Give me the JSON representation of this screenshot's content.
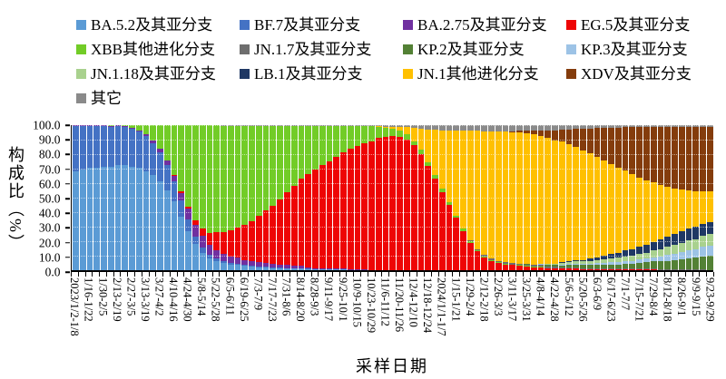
{
  "figure": {
    "y_axis_title": "构成比（%）",
    "x_axis_title": "采样日期"
  },
  "chart_data": {
    "type": "bar",
    "subtype": "stacked-100-percent-columns",
    "title": "",
    "xlabel": "采样日期",
    "ylabel": "构成比（%）",
    "ylim": [
      0,
      100
    ],
    "grid": true,
    "legend_position": "top",
    "n_bars": 91,
    "bars_per_label": 2,
    "y_ticks": [
      "100.0",
      "90.0",
      "80.0",
      "70.0",
      "60.0",
      "50.0",
      "40.0",
      "30.0",
      "20.0",
      "10.0",
      "0.0"
    ],
    "x_tick_labels": [
      "2023/1/2-1/8",
      "1/16-1/22",
      "1/30-2/5",
      "2/13-2/19",
      "2/27-3/5",
      "3/13-3/19",
      "3/27-4/2",
      "4/10-4/16",
      "4/24-4/30",
      "5/8-5/14",
      "5/22-5/28",
      "6/5-6/11",
      "6/19-6/25",
      "7/3-7/9",
      "7/17-7/23",
      "7/31-8/6",
      "8/14-8/20",
      "8/28-9/3",
      "9/11-9/17",
      "9/25-10/1",
      "10/9-10/15",
      "10/23-10/29",
      "11/6-11/12",
      "11/20-11/26",
      "12/4-12/10",
      "12/18-12/24",
      "2024/1/1-1/7",
      "1/15-1/21",
      "1/29-2/4",
      "2/12-2/18",
      "2/26-3/3",
      "3/11-3/17",
      "3/25-3/31",
      "4/8-4/14",
      "4/22-4/28",
      "5/6-5/12",
      "5/20-5/26",
      "6/3-6/9",
      "6/17-6/23",
      "7/1-7/7",
      "7/15-7/21",
      "7/29-8/4",
      "8/12-8/18",
      "8/26-9/1",
      "9/9-9/15",
      "9/23-9/29"
    ],
    "series": [
      {
        "name": "BA.5.2及其亚分支",
        "color": "#5B9BD5",
        "values": [
          68,
          69,
          70,
          70,
          71,
          71,
          72,
          72,
          71,
          70,
          68,
          65,
          61,
          55,
          47,
          37,
          27,
          18,
          12,
          8,
          6,
          5,
          4,
          3.5,
          3,
          2.5,
          2,
          2,
          1.5,
          1.5,
          1,
          1,
          1,
          0.5,
          0.5,
          0.5,
          0.5,
          0.5,
          0.5,
          0,
          0,
          0,
          0,
          0,
          0,
          0,
          0,
          0,
          0,
          0,
          0,
          0,
          0,
          0,
          0,
          0,
          0,
          0,
          0,
          0,
          0,
          0,
          0,
          0,
          0,
          0,
          0,
          0,
          0,
          0,
          0,
          0,
          0,
          0,
          0,
          0,
          0,
          0,
          0,
          0,
          0,
          0,
          0,
          0,
          0,
          0,
          0,
          0,
          0,
          0,
          0
        ]
      },
      {
        "name": "BF.7及其亚分支",
        "color": "#4472C4",
        "values": [
          31,
          30,
          29,
          29,
          28,
          27.5,
          27,
          26.5,
          26,
          25,
          24,
          22,
          20,
          17,
          14,
          11,
          8,
          5,
          3.5,
          2.5,
          2,
          1.5,
          1,
          1,
          0.5,
          0.5,
          0.5,
          0.5,
          0.5,
          0.5,
          0.5,
          0.5,
          0.5,
          0.5,
          0,
          0,
          0,
          0,
          0,
          0,
          0,
          0,
          0,
          0,
          0,
          0,
          0,
          0,
          0,
          0,
          0,
          0,
          0,
          0,
          0,
          0,
          0,
          0,
          0,
          0,
          0,
          0,
          0,
          0,
          0,
          0,
          0,
          0,
          0,
          0,
          0,
          0,
          0,
          0,
          0,
          0,
          0,
          0,
          0,
          0,
          0,
          0,
          0,
          0,
          0,
          0,
          0,
          0,
          0,
          0,
          0
        ]
      },
      {
        "name": "BA.2.75及其亚分支",
        "color": "#7030A0",
        "values": [
          0.5,
          0.5,
          0.5,
          0.5,
          0.5,
          0.5,
          0.5,
          0.5,
          0.5,
          1,
          1.5,
          2,
          2.5,
          3,
          4,
          5,
          7,
          8,
          8,
          7,
          6,
          5,
          4.5,
          4,
          3.5,
          3,
          3,
          2.5,
          2.5,
          2,
          2,
          1.5,
          1.5,
          1,
          1,
          1,
          0.5,
          0.5,
          0.5,
          0.5,
          0.5,
          0.5,
          0,
          0,
          0,
          0,
          0,
          0,
          0,
          0,
          0,
          0,
          0,
          0,
          0,
          0,
          0,
          0,
          0,
          0,
          0,
          0,
          0,
          0,
          0,
          0,
          0,
          0,
          0,
          0,
          0,
          0,
          0,
          0,
          0,
          0,
          0,
          0,
          0,
          0,
          0,
          0,
          0,
          0,
          0,
          0,
          0,
          0,
          0,
          0,
          0
        ]
      },
      {
        "name": "EG.5及其亚分支",
        "color": "#EE0505",
        "values": [
          0,
          0,
          0,
          0,
          0,
          0,
          0,
          0,
          0,
          0,
          0,
          0,
          0,
          0,
          0.5,
          1,
          1.5,
          3,
          5,
          8,
          12,
          15,
          18,
          21,
          24,
          28,
          32,
          36,
          40,
          45,
          50,
          55,
          60,
          64,
          68,
          71,
          74,
          77,
          80,
          83,
          85,
          87,
          89,
          91,
          92,
          92.5,
          92,
          90,
          86,
          80,
          72,
          63,
          54,
          45,
          36,
          27,
          19,
          13,
          9,
          6.5,
          5,
          4,
          3.5,
          3,
          2.5,
          2,
          2,
          1.5,
          1.5,
          1,
          1,
          1,
          0.5,
          0.5,
          0.5,
          0.5,
          0.5,
          0.5,
          0.5,
          0.5,
          0.5,
          0.5,
          0.5,
          0,
          0,
          0,
          0,
          0,
          0,
          0,
          0
        ]
      },
      {
        "name": "XBB其他进化分支",
        "color": "#72CC27",
        "values": [
          0,
          0,
          0,
          0,
          0,
          0.5,
          0,
          0.5,
          2,
          3.5,
          6,
          10.5,
          16,
          24.5,
          34,
          45.5,
          56,
          65.5,
          71,
          74,
          73.5,
          73,
          72,
          70,
          68.5,
          65.5,
          62,
          58.5,
          55,
          50.5,
          46,
          41.5,
          36.5,
          33.5,
          30,
          27,
          24.5,
          21.5,
          18.5,
          16,
          14,
          12,
          10.5,
          8,
          6,
          5,
          4,
          3.5,
          3,
          3,
          2.5,
          2.5,
          2,
          2,
          1.5,
          1.5,
          1,
          1,
          0.5,
          0.5,
          0.5,
          0.5,
          0.5,
          0.5,
          0.5,
          0.5,
          0.5,
          0,
          0,
          0,
          0,
          0,
          0,
          0,
          0,
          0,
          0,
          0,
          0,
          0,
          0,
          0,
          0,
          0,
          0,
          0,
          0,
          0,
          0,
          0,
          0
        ]
      },
      {
        "name": "JN.1.7及其亚分支",
        "color": "#6E6E6E",
        "values": [
          0,
          0,
          0,
          0,
          0,
          0,
          0,
          0,
          0,
          0,
          0,
          0,
          0,
          0,
          0,
          0,
          0,
          0,
          0,
          0,
          0,
          0,
          0,
          0,
          0,
          0,
          0,
          0,
          0,
          0,
          0,
          0,
          0,
          0,
          0,
          0,
          0,
          0,
          0,
          0,
          0,
          0,
          0,
          0,
          0,
          0,
          0,
          0,
          0,
          0,
          0,
          0,
          0,
          0,
          0,
          0,
          0.5,
          0.5,
          1,
          1,
          1,
          1,
          1,
          1,
          1,
          1,
          1,
          1,
          1,
          1,
          1,
          1,
          1,
          1,
          1,
          0.5,
          0.5,
          0.5,
          0.5,
          0.5,
          0.5,
          0.5,
          0.5,
          0.5,
          0.5,
          0.5,
          0.5,
          0.5,
          0.5,
          0.5,
          0
        ]
      },
      {
        "name": "KP.2及其亚分支",
        "color": "#538135",
        "values": [
          0,
          0,
          0,
          0,
          0,
          0,
          0,
          0,
          0,
          0,
          0,
          0,
          0,
          0,
          0,
          0,
          0,
          0,
          0,
          0,
          0,
          0,
          0,
          0,
          0,
          0,
          0,
          0,
          0,
          0,
          0,
          0,
          0,
          0,
          0,
          0,
          0,
          0,
          0,
          0,
          0,
          0,
          0,
          0,
          0,
          0,
          0,
          0,
          0,
          0,
          0,
          0,
          0,
          0,
          0,
          0,
          0,
          0,
          0,
          0,
          0,
          0,
          0,
          0,
          0.5,
          0.5,
          0.5,
          1,
          1,
          1,
          1.5,
          1.5,
          2,
          2,
          2.5,
          2.5,
          3,
          3,
          3.5,
          3.5,
          4,
          4.5,
          5,
          5.5,
          6,
          6.5,
          7,
          7.5,
          8,
          9,
          10
        ]
      },
      {
        "name": "KP.3及其亚分支",
        "color": "#9DC3E6",
        "values": [
          0,
          0,
          0,
          0,
          0,
          0,
          0,
          0,
          0,
          0,
          0,
          0,
          0,
          0,
          0,
          0,
          0,
          0,
          0,
          0,
          0,
          0,
          0,
          0,
          0,
          0,
          0,
          0,
          0,
          0,
          0,
          0,
          0,
          0,
          0,
          0,
          0,
          0,
          0,
          0,
          0,
          0,
          0,
          0,
          0,
          0,
          0,
          0,
          0,
          0,
          0,
          0,
          0,
          0,
          0,
          0,
          0,
          0,
          0,
          0,
          0,
          0,
          0,
          0,
          0,
          0,
          0.5,
          0.5,
          0.5,
          1,
          1,
          1,
          1,
          1,
          1,
          1.5,
          1.5,
          1.5,
          2,
          2,
          2.5,
          2.5,
          3,
          3.5,
          4,
          4.5,
          5,
          5.5,
          6,
          6.5,
          7
        ]
      },
      {
        "name": "JN.1.18及其亚分支",
        "color": "#A9D18E",
        "values": [
          0,
          0,
          0,
          0,
          0,
          0,
          0,
          0,
          0,
          0,
          0,
          0,
          0,
          0,
          0,
          0,
          0,
          0,
          0,
          0,
          0,
          0,
          0,
          0,
          0,
          0,
          0,
          0,
          0,
          0,
          0,
          0,
          0,
          0,
          0,
          0,
          0,
          0,
          0,
          0,
          0,
          0,
          0,
          0,
          0,
          0,
          0,
          0,
          0,
          0,
          0,
          0,
          0,
          0,
          0,
          0,
          0,
          0,
          0,
          0,
          0,
          0,
          0,
          0,
          0,
          0,
          0,
          0.5,
          0.5,
          1,
          1,
          1.5,
          1.5,
          2,
          2,
          2.5,
          2.5,
          3,
          3,
          3.5,
          3.5,
          4,
          4.5,
          5,
          5.5,
          6,
          6.5,
          7,
          7,
          7.5,
          8
        ]
      },
      {
        "name": "LB.1及其亚分支",
        "color": "#1F3864",
        "values": [
          0,
          0,
          0,
          0,
          0,
          0,
          0,
          0,
          0,
          0,
          0,
          0,
          0,
          0,
          0,
          0,
          0,
          0,
          0,
          0,
          0,
          0,
          0,
          0,
          0,
          0,
          0,
          0,
          0,
          0,
          0,
          0,
          0,
          0,
          0,
          0,
          0,
          0,
          0,
          0,
          0,
          0,
          0,
          0,
          0,
          0,
          0,
          0,
          0,
          0,
          0,
          0,
          0,
          0,
          0,
          0,
          0,
          0,
          0,
          0,
          0,
          0,
          0,
          0,
          0,
          0,
          0,
          0,
          0,
          0.5,
          0.5,
          1,
          1,
          1.5,
          2,
          2.5,
          3,
          3.5,
          4,
          4.5,
          5,
          5.5,
          6,
          6.5,
          7,
          7.5,
          8,
          8,
          8.5,
          8.5,
          8
        ]
      },
      {
        "name": "JN.1其他进化分支",
        "color": "#FFC000",
        "values": [
          0,
          0,
          0,
          0,
          0,
          0,
          0,
          0,
          0,
          0,
          0,
          0,
          0,
          0,
          0,
          0,
          0,
          0,
          0,
          0,
          0,
          0,
          0,
          0,
          0,
          0,
          0,
          0,
          0,
          0,
          0,
          0,
          0,
          0,
          0,
          0,
          0,
          0,
          0,
          0,
          0,
          0,
          0,
          0.5,
          1,
          1.5,
          2.5,
          5,
          9,
          14.5,
          22.5,
          31.5,
          40.5,
          49.5,
          58.5,
          67.5,
          76,
          82,
          85,
          88,
          89.5,
          90.5,
          90.5,
          91,
          90.5,
          90,
          88.5,
          87,
          85,
          83,
          81,
          78,
          75.5,
          72.5,
          69,
          65.5,
          62,
          58.5,
          55,
          51.5,
          48,
          44.5,
          41,
          38,
          34.5,
          31.5,
          28.5,
          26.5,
          24.5,
          22.5,
          21.5
        ]
      },
      {
        "name": "XDV及其亚分支",
        "color": "#843C0C",
        "values": [
          0,
          0,
          0,
          0,
          0,
          0,
          0,
          0,
          0,
          0,
          0,
          0,
          0,
          0,
          0,
          0,
          0,
          0,
          0,
          0,
          0,
          0,
          0,
          0,
          0,
          0,
          0,
          0,
          0,
          0,
          0,
          0,
          0,
          0,
          0,
          0,
          0,
          0,
          0,
          0,
          0,
          0,
          0,
          0,
          0,
          0,
          0,
          0,
          0,
          0,
          0,
          0,
          0,
          0,
          0,
          0,
          0,
          0,
          0,
          0,
          0,
          0,
          0.5,
          1,
          1.5,
          2.5,
          3.5,
          5,
          7,
          8.5,
          10,
          12.5,
          15,
          17,
          20,
          22.5,
          25,
          27.5,
          30,
          32.5,
          34.5,
          36.5,
          38,
          39.5,
          41,
          42,
          43,
          43.5,
          44,
          44,
          44
        ]
      },
      {
        "name": "其它",
        "color": "#8A8A8A",
        "values": [
          0,
          0,
          0,
          0,
          0,
          0,
          0,
          0,
          0,
          0,
          0,
          0,
          0,
          0,
          0,
          0,
          0,
          0,
          0,
          0,
          0,
          0.5,
          0.5,
          0.5,
          0.5,
          0.5,
          0.5,
          0.5,
          0.5,
          0.5,
          0.5,
          0.5,
          0.5,
          0.5,
          0.5,
          0.5,
          0.5,
          0.5,
          0.5,
          0.5,
          0.5,
          0.5,
          0.5,
          0.5,
          1,
          1,
          1.5,
          1.5,
          2,
          2.5,
          3,
          3,
          3.5,
          3.5,
          4,
          4,
          4,
          4,
          4.5,
          4.5,
          4.5,
          4.5,
          4.5,
          4,
          4,
          4,
          4,
          3.5,
          3.5,
          3,
          3,
          2.5,
          2.5,
          2.5,
          2,
          2,
          2,
          2,
          1.5,
          1.5,
          1.5,
          1.5,
          1.5,
          1.5,
          1.5,
          1.5,
          1.5,
          1.5,
          1.5,
          1.5,
          1.5
        ]
      }
    ]
  }
}
